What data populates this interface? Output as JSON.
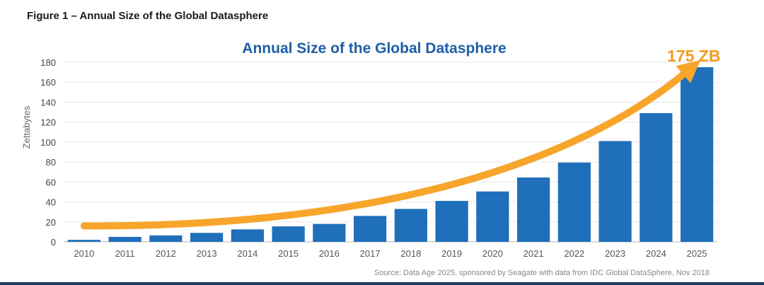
{
  "figure_caption": "Figure 1 – Annual Size of the Global Datasphere",
  "colors": {
    "bar": "#1f6fba",
    "arrow": "#f7a52b",
    "title": "#1f5fa6",
    "callout": "#f39a1e"
  },
  "chart_data": {
    "type": "bar",
    "title": "Annual Size of the Global Datasphere",
    "ylabel": "Zettabytes",
    "xlabel": "",
    "ylim": [
      0,
      180
    ],
    "yticks": [
      0,
      20,
      40,
      60,
      80,
      100,
      120,
      140,
      160,
      180
    ],
    "categories": [
      "2010",
      "2011",
      "2012",
      "2013",
      "2014",
      "2015",
      "2016",
      "2017",
      "2018",
      "2019",
      "2020",
      "2021",
      "2022",
      "2023",
      "2024",
      "2025"
    ],
    "values": [
      2,
      5,
      6.5,
      9,
      12.5,
      15.5,
      18,
      26,
      33,
      41,
      50.5,
      64.5,
      79.5,
      101,
      129,
      175
    ],
    "annotation": "175 ZB",
    "source": "Source: Data Age 2025, sponsored by Seagate with data from IDC Global DataSphere, Nov 2018"
  }
}
